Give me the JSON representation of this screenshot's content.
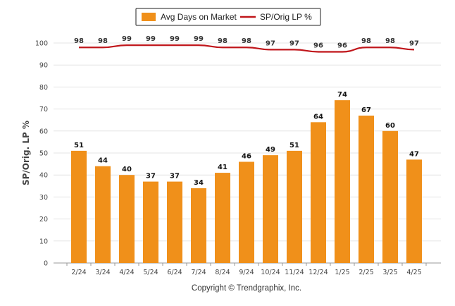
{
  "chart_data": {
    "type": "bar",
    "categories": [
      "2/24",
      "3/24",
      "4/24",
      "5/24",
      "6/24",
      "7/24",
      "8/24",
      "9/24",
      "10/24",
      "11/24",
      "12/24",
      "1/25",
      "2/25",
      "3/25",
      "4/25"
    ],
    "series": [
      {
        "name": "Avg Days on Market",
        "type": "bar",
        "color": "#f0901a",
        "values": [
          51,
          44,
          40,
          37,
          37,
          34,
          41,
          46,
          49,
          51,
          64,
          74,
          67,
          60,
          47
        ]
      },
      {
        "name": "SP/Orig LP %",
        "type": "line",
        "color": "#c0161b",
        "values": [
          98,
          98,
          99,
          99,
          99,
          99,
          98,
          98,
          97,
          97,
          96,
          96,
          98,
          98,
          97
        ]
      }
    ],
    "ylabel": "SP/Orig. LP %",
    "ylim": [
      0,
      100
    ],
    "yticks": [
      0,
      10,
      20,
      30,
      40,
      50,
      60,
      70,
      80,
      90,
      100
    ],
    "grid": true,
    "legend_position": "top-center"
  },
  "footer": {
    "copyright": "Copyright © Trendgraphix, Inc."
  }
}
